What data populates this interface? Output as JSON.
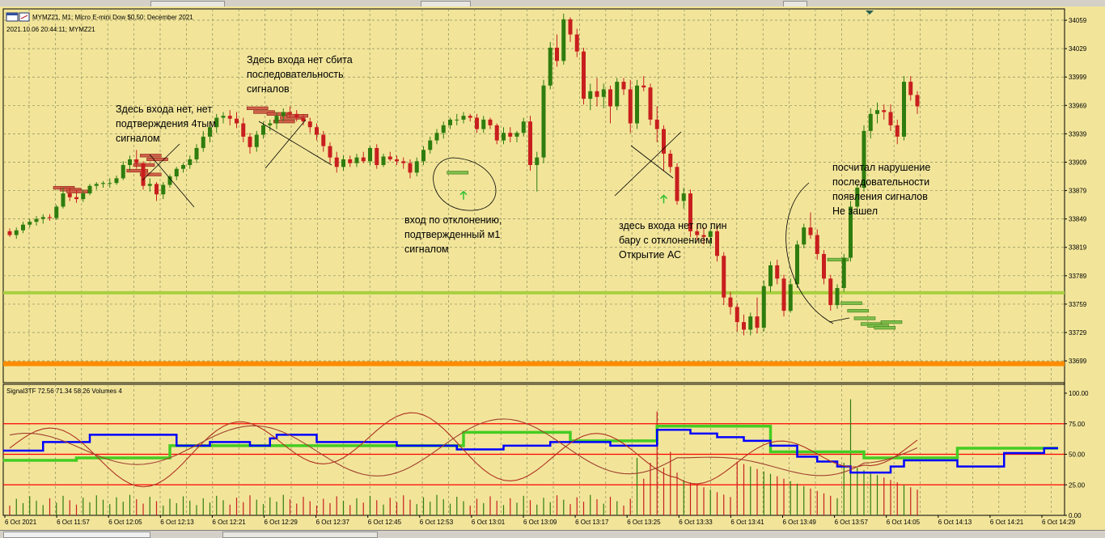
{
  "main_chart": {
    "title": "MYMZ21, M1:  Micro E-mini Dow $0.50: December 2021",
    "subtitle": "2021.10.06 20:44:11; MYMZ21",
    "price_labels": [
      "34059",
      "34029",
      "33999",
      "33969",
      "33939",
      "33909",
      "33879",
      "33849",
      "33819",
      "33789",
      "33759",
      "33729",
      "33699"
    ],
    "annotations": [
      {
        "id": "a1",
        "lines": [
          "Здесь входа нет сбита",
          "последовательность",
          "сигналов"
        ]
      },
      {
        "id": "a2",
        "lines": [
          "Здесь входа нет, нет",
          "подтверждения 4тым",
          "сигналом"
        ]
      },
      {
        "id": "a3",
        "lines": [
          "вход по отклонению,",
          "подтвержденный м1",
          "сигналом"
        ]
      },
      {
        "id": "a4",
        "lines": [
          "здесь входа нет по пин",
          "бару с отклонением",
          "Открытие АС"
        ]
      },
      {
        "id": "a5",
        "lines": [
          "посчитал нарушение",
          "последовательности",
          "появления сигналов",
          "Не зашел"
        ]
      }
    ]
  },
  "indicator": {
    "title": "Signal3TF 72.56 71.34 58.26 Volumes 4",
    "scale_labels": [
      "100.00",
      "75.00",
      "50.00",
      "25.00",
      "0.00"
    ]
  },
  "time_axis": [
    "6 Oct 2021",
    "6 Oct 11:57",
    "6 Oct 12:05",
    "6 Oct 12:13",
    "6 Oct 12:21",
    "6 Oct 12:29",
    "6 Oct 12:37",
    "6 Oct 12:45",
    "6 Oct 12:53",
    "6 Oct 13:01",
    "6 Oct 13:09",
    "6 Oct 13:17",
    "6 Oct 13:25",
    "6 Oct 13:33",
    "6 Oct 13:41",
    "6 Oct 13:49",
    "6 Oct 13:57",
    "6 Oct 14:05",
    "6 Oct 14:13",
    "6 Oct 14:21",
    "6 Oct 14:29"
  ],
  "colors": {
    "background": "#f2e59a",
    "grid": "#8c8c5a",
    "bull": "#2e7d0e",
    "bear": "#c81e1e",
    "orange_level": "#ff8c00",
    "green_level": "#a8d040",
    "blue_line": "#0000ff",
    "green_line": "#44cc22",
    "brown_line": "#b03020",
    "red_level": "#ff0000"
  },
  "chart_data": [
    {
      "type": "candlestick",
      "title": "MYMZ21, M1:  Micro E-mini Dow $0.50: December 2021",
      "ylim": [
        33676,
        34071
      ],
      "levels": {
        "green": 33771,
        "orange": 33696
      },
      "ohlc": [
        [
          33836,
          33839,
          33830,
          33832
        ],
        [
          33832,
          33840,
          33828,
          33837
        ],
        [
          33837,
          33846,
          33834,
          33843
        ],
        [
          33843,
          33849,
          33840,
          33846
        ],
        [
          33846,
          33852,
          33842,
          33849
        ],
        [
          33849,
          33854,
          33844,
          33851
        ],
        [
          33851,
          33854,
          33847,
          33850
        ],
        [
          33850,
          33864,
          33848,
          33862
        ],
        [
          33862,
          33882,
          33860,
          33876
        ],
        [
          33876,
          33882,
          33868,
          33872
        ],
        [
          33872,
          33880,
          33866,
          33870
        ],
        [
          33870,
          33880,
          33867,
          33876
        ],
        [
          33876,
          33886,
          33874,
          33884
        ],
        [
          33884,
          33888,
          33880,
          33886
        ],
        [
          33886,
          33889,
          33882,
          33887
        ],
        [
          33887,
          33892,
          33882,
          33887
        ],
        [
          33887,
          33895,
          33885,
          33892
        ],
        [
          33892,
          33910,
          33890,
          33906
        ],
        [
          33906,
          33916,
          33900,
          33912
        ],
        [
          33912,
          33922,
          33902,
          33908
        ],
        [
          33908,
          33910,
          33880,
          33884
        ],
        [
          33884,
          33892,
          33878,
          33886
        ],
        [
          33886,
          33888,
          33868,
          33875
        ],
        [
          33875,
          33888,
          33870,
          33885
        ],
        [
          33885,
          33896,
          33882,
          33894
        ],
        [
          33894,
          33904,
          33890,
          33902
        ],
        [
          33902,
          33908,
          33898,
          33906
        ],
        [
          33906,
          33916,
          33902,
          33912
        ],
        [
          33912,
          33928,
          33908,
          33924
        ],
        [
          33924,
          33942,
          33920,
          33936
        ],
        [
          33936,
          33952,
          33930,
          33946
        ],
        [
          33946,
          33960,
          33940,
          33956
        ],
        [
          33956,
          33962,
          33950,
          33958
        ],
        [
          33958,
          33964,
          33948,
          33955
        ],
        [
          33955,
          33962,
          33945,
          33950
        ],
        [
          33950,
          33956,
          33930,
          33936
        ],
        [
          33936,
          33940,
          33918,
          33925
        ],
        [
          33925,
          33942,
          33920,
          33938
        ],
        [
          33938,
          33952,
          33934,
          33948
        ],
        [
          33948,
          33954,
          33942,
          33950
        ],
        [
          33950,
          33962,
          33944,
          33958
        ],
        [
          33958,
          33966,
          33952,
          33962
        ],
        [
          33962,
          33968,
          33956,
          33960
        ],
        [
          33960,
          33964,
          33952,
          33956
        ],
        [
          33956,
          33960,
          33948,
          33952
        ],
        [
          33952,
          33956,
          33940,
          33946
        ],
        [
          33946,
          33950,
          33932,
          33938
        ],
        [
          33938,
          33942,
          33920,
          33926
        ],
        [
          33926,
          33930,
          33908,
          33914
        ],
        [
          33914,
          33920,
          33898,
          33904
        ],
        [
          33904,
          33916,
          33900,
          33912
        ],
        [
          33912,
          33916,
          33904,
          33908
        ],
        [
          33908,
          33918,
          33904,
          33914
        ],
        [
          33914,
          33920,
          33908,
          33910
        ],
        [
          33910,
          33926,
          33906,
          33924
        ],
        [
          33924,
          33928,
          33902,
          33906
        ],
        [
          33906,
          33918,
          33904,
          33915
        ],
        [
          33915,
          33920,
          33910,
          33912
        ],
        [
          33912,
          33916,
          33906,
          33910
        ],
        [
          33910,
          33914,
          33902,
          33908
        ],
        [
          33908,
          33912,
          33892,
          33898
        ],
        [
          33898,
          33914,
          33894,
          33910
        ],
        [
          33910,
          33926,
          33906,
          33922
        ],
        [
          33922,
          33936,
          33918,
          33932
        ],
        [
          33932,
          33944,
          33928,
          33940
        ],
        [
          33940,
          33952,
          33934,
          33948
        ],
        [
          33948,
          33956,
          33944,
          33954
        ],
        [
          33954,
          33960,
          33948,
          33954
        ],
        [
          33954,
          33962,
          33950,
          33958
        ],
        [
          33958,
          33960,
          33952,
          33956
        ],
        [
          33956,
          33960,
          33940,
          33944
        ],
        [
          33944,
          33958,
          33940,
          33954
        ],
        [
          33954,
          33956,
          33944,
          33948
        ],
        [
          33948,
          33950,
          33928,
          33932
        ],
        [
          33932,
          33946,
          33928,
          33940
        ],
        [
          33940,
          33946,
          33930,
          33936
        ],
        [
          33936,
          33942,
          33930,
          33940
        ],
        [
          33940,
          33956,
          33936,
          33952
        ],
        [
          33952,
          33958,
          33900,
          33906
        ],
        [
          33906,
          33920,
          33878,
          33914
        ],
        [
          33914,
          33996,
          33908,
          33990
        ],
        [
          33990,
          34036,
          33986,
          34030
        ],
        [
          34030,
          34044,
          34010,
          34016
        ],
        [
          34016,
          34066,
          34012,
          34060
        ],
        [
          34060,
          34062,
          34036,
          34044
        ],
        [
          34044,
          34050,
          34020,
          34026
        ],
        [
          34026,
          34030,
          33970,
          33976
        ],
        [
          33976,
          33992,
          33964,
          33984
        ],
        [
          33984,
          33998,
          33968,
          33978
        ],
        [
          33978,
          33992,
          33966,
          33986
        ],
        [
          33986,
          33990,
          33950,
          33968
        ],
        [
          33968,
          33998,
          33964,
          33994
        ],
        [
          33994,
          33998,
          33980,
          33986
        ],
        [
          33986,
          33996,
          33940,
          33950
        ],
        [
          33950,
          33996,
          33944,
          33990
        ],
        [
          33990,
          34000,
          33984,
          33988
        ],
        [
          33988,
          33992,
          33948,
          33954
        ],
        [
          33954,
          33968,
          33930,
          33944
        ],
        [
          33944,
          33948,
          33900,
          33918
        ],
        [
          33918,
          33922,
          33898,
          33904
        ],
        [
          33904,
          33908,
          33864,
          33868
        ],
        [
          33868,
          33882,
          33860,
          33876
        ],
        [
          33876,
          33880,
          33830,
          33836
        ],
        [
          33836,
          33844,
          33826,
          33832
        ],
        [
          33832,
          33840,
          33822,
          33830
        ],
        [
          33830,
          33838,
          33820,
          33836
        ],
        [
          33836,
          33842,
          33804,
          33810
        ],
        [
          33810,
          33814,
          33758,
          33766
        ],
        [
          33766,
          33772,
          33748,
          33756
        ],
        [
          33756,
          33760,
          33730,
          33740
        ],
        [
          33740,
          33748,
          33726,
          33732
        ],
        [
          33732,
          33750,
          33726,
          33746
        ],
        [
          33746,
          33766,
          33728,
          33734
        ],
        [
          33734,
          33784,
          33730,
          33778
        ],
        [
          33778,
          33804,
          33772,
          33800
        ],
        [
          33800,
          33806,
          33780,
          33786
        ],
        [
          33786,
          33790,
          33746,
          33752
        ],
        [
          33752,
          33786,
          33750,
          33780
        ],
        [
          33780,
          33826,
          33776,
          33822
        ],
        [
          33822,
          33844,
          33818,
          33840
        ],
        [
          33840,
          33856,
          33828,
          33832
        ],
        [
          33832,
          33838,
          33806,
          33812
        ],
        [
          33812,
          33816,
          33780,
          33786
        ],
        [
          33786,
          33790,
          33752,
          33758
        ],
        [
          33758,
          33780,
          33754,
          33776
        ],
        [
          33776,
          33812,
          33772,
          33808
        ],
        [
          33808,
          33868,
          33804,
          33862
        ],
        [
          33862,
          33886,
          33854,
          33882
        ],
        [
          33882,
          33948,
          33878,
          33942
        ],
        [
          33942,
          33966,
          33934,
          33960
        ],
        [
          33960,
          33972,
          33950,
          33964
        ],
        [
          33964,
          33970,
          33954,
          33962
        ],
        [
          33962,
          33970,
          33942,
          33948
        ],
        [
          33948,
          33954,
          33928,
          33936
        ],
        [
          33936,
          34000,
          33932,
          33994
        ],
        [
          33994,
          34000,
          33974,
          33980
        ],
        [
          33980,
          33984,
          33960,
          33968
        ]
      ]
    },
    {
      "type": "line",
      "title": "Signal3TF 72.56 71.34 58.26 Volumes 4",
      "ylim": [
        0,
        100
      ],
      "levels": [
        75,
        50,
        25
      ],
      "series": []
    }
  ]
}
